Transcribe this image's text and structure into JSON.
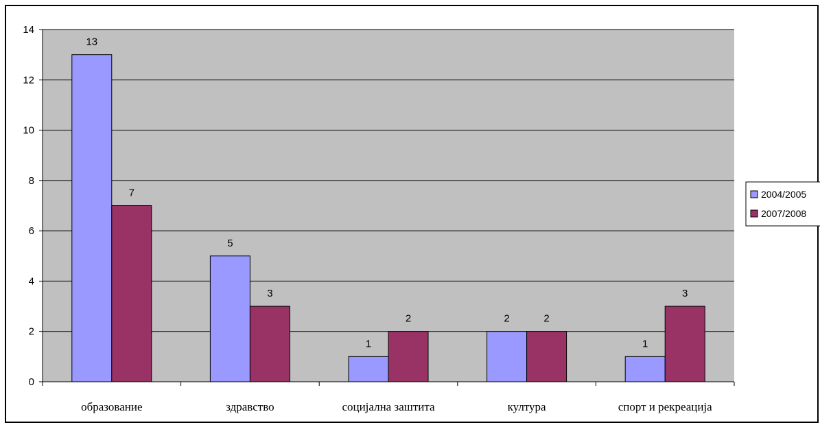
{
  "chart_data": {
    "type": "bar",
    "categories": [
      "образование",
      "здравство",
      "социјална заштита",
      "култура",
      "спорт и рекреација"
    ],
    "series": [
      {
        "name": "2004/2005",
        "values": [
          13,
          5,
          1,
          2,
          1
        ],
        "color": "#9999ff"
      },
      {
        "name": "2007/2008",
        "values": [
          7,
          3,
          2,
          2,
          3
        ],
        "color": "#993366"
      }
    ],
    "ylim": [
      0,
      14
    ],
    "yticks": [
      0,
      2,
      4,
      6,
      8,
      10,
      12,
      14
    ],
    "title": "",
    "xlabel": "",
    "ylabel": "",
    "grid": true,
    "plot_background": "#c0c0c0",
    "data_labels": true,
    "legend_position": "right"
  }
}
